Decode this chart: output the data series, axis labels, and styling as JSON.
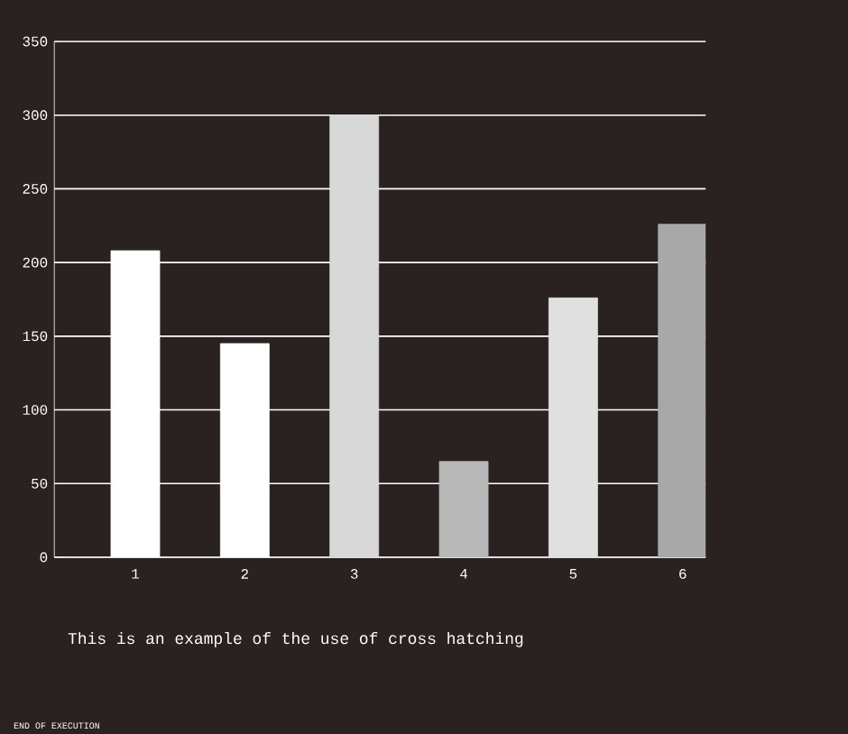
{
  "chart_data": {
    "type": "bar",
    "categories": [
      "1",
      "2",
      "3",
      "4",
      "5",
      "6"
    ],
    "values": [
      208,
      145,
      300,
      65,
      176,
      226
    ],
    "colors": [
      "#ffffff",
      "#ffffff",
      "#d8d8d8",
      "#b8b8b8",
      "#e0e0e0",
      "#a8a8a8"
    ],
    "ylim": [
      0,
      350
    ],
    "yticks": [
      0,
      50,
      100,
      150,
      200,
      250,
      300,
      350
    ],
    "grid": "y",
    "annotations": [
      "This is an example of the use of cross hatching",
      "END OF EXECUTION"
    ]
  }
}
